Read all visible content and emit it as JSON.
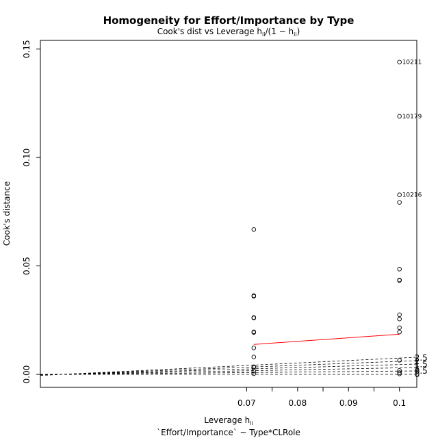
{
  "chart_data": {
    "type": "scatter",
    "title": "Homogeneity for Effort/Importance by Type",
    "subtitle": "Cook's dist vs Leverage  h",
    "subtitle_sub_ii": "ii",
    "subtitle_formula_open": "/(1 − h",
    "subtitle_formula_close": ")",
    "xlabel": "Leverage  h",
    "xlabel_sub": "ii",
    "ylabel": "Cook's distance",
    "model_formula": "`Effort/Importance` ~ Type*CLRole",
    "xlim": [
      0.0295,
      0.1034
    ],
    "ylim": [
      -0.006,
      0.154
    ],
    "x_ticks": [
      0.07,
      0.08,
      0.09,
      0.1
    ],
    "x_tick_labels": [
      "0.07",
      "0.08",
      "0.09",
      "0.1"
    ],
    "x_minor_ticks": [
      0.075,
      0.085,
      0.095
    ],
    "y_ticks": [
      0.0,
      0.05,
      0.1,
      0.15
    ],
    "y_tick_labels": [
      "0.00",
      "0.05",
      "0.10",
      "0.15"
    ],
    "points": [
      {
        "x": 0.0714,
        "y": 0.0668
      },
      {
        "x": 0.0714,
        "y": 0.036
      },
      {
        "x": 0.0714,
        "y": 0.0363
      },
      {
        "x": 0.0714,
        "y": 0.026
      },
      {
        "x": 0.0714,
        "y": 0.0262
      },
      {
        "x": 0.0714,
        "y": 0.0193
      },
      {
        "x": 0.0714,
        "y": 0.0196
      },
      {
        "x": 0.0714,
        "y": 0.0122
      },
      {
        "x": 0.0714,
        "y": 0.008
      },
      {
        "x": 0.0714,
        "y": 0.0035
      },
      {
        "x": 0.0714,
        "y": 0.0032
      },
      {
        "x": 0.0714,
        "y": 0.0015
      },
      {
        "x": 0.0714,
        "y": 0.0003
      },
      {
        "x": 0.1,
        "y": 0.144
      },
      {
        "x": 0.1,
        "y": 0.119
      },
      {
        "x": 0.1,
        "y": 0.0828
      },
      {
        "x": 0.1,
        "y": 0.0793
      },
      {
        "x": 0.1,
        "y": 0.0485
      },
      {
        "x": 0.1,
        "y": 0.0435
      },
      {
        "x": 0.1,
        "y": 0.0433
      },
      {
        "x": 0.1,
        "y": 0.0275
      },
      {
        "x": 0.1,
        "y": 0.0255
      },
      {
        "x": 0.1,
        "y": 0.0215
      },
      {
        "x": 0.1,
        "y": 0.0195
      },
      {
        "x": 0.1,
        "y": 0.0065
      },
      {
        "x": 0.1,
        "y": 0.0018
      },
      {
        "x": 0.1,
        "y": 0.0008
      },
      {
        "x": 0.1,
        "y": 0.0002
      }
    ],
    "point_labels": [
      {
        "x": 0.1,
        "y": 0.144,
        "text": "10211"
      },
      {
        "x": 0.1,
        "y": 0.119,
        "text": "10179"
      },
      {
        "x": 0.1,
        "y": 0.0828,
        "text": "10216"
      }
    ],
    "smoother": {
      "x": [
        0.0714,
        0.1
      ],
      "y": [
        0.0138,
        0.0185
      ],
      "color": "#ff0000"
    },
    "contours": [
      {
        "k": 0,
        "label": "0"
      },
      {
        "k": 0.5,
        "label": "0.5"
      },
      {
        "k": 1,
        "label": "1"
      },
      {
        "k": 1.5,
        "label": "1.5"
      },
      {
        "k": 2,
        "label": "2"
      },
      {
        "k": 2.5,
        "label": "2.5"
      }
    ],
    "contour_origin_x": 0.0339,
    "grid": false
  }
}
